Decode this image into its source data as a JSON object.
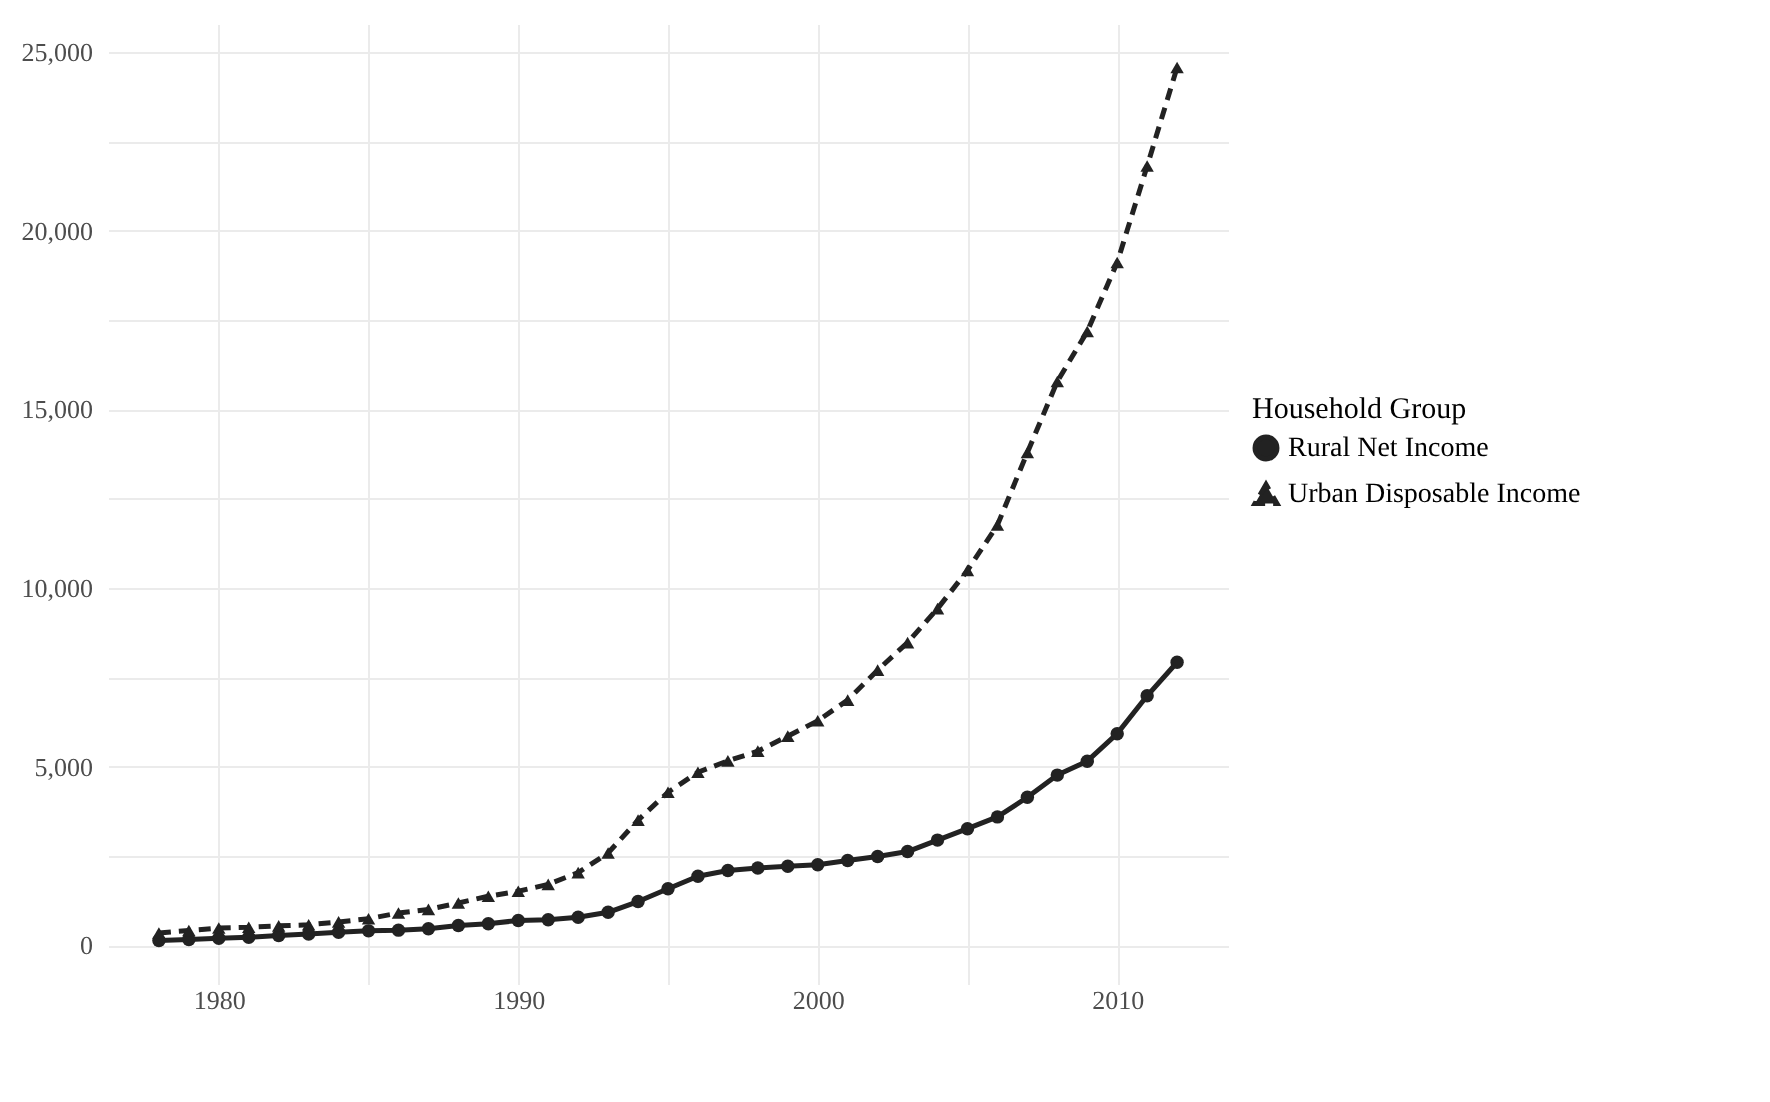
{
  "chart_data": {
    "type": "line",
    "legend_title": "Household Group",
    "x": [
      1978,
      1979,
      1980,
      1981,
      1982,
      1983,
      1984,
      1985,
      1986,
      1987,
      1988,
      1989,
      1990,
      1991,
      1992,
      1993,
      1994,
      1995,
      1996,
      1997,
      1998,
      1999,
      2000,
      2001,
      2002,
      2003,
      2004,
      2005,
      2006,
      2007,
      2008,
      2009,
      2010,
      2011,
      2012
    ],
    "series": [
      {
        "name": "Rural Net Income",
        "color": "#222222",
        "marker": "circle",
        "line_style": "solid",
        "values": [
          130,
          160,
          190,
          220,
          270,
          310,
          360,
          400,
          420,
          460,
          550,
          600,
          690,
          710,
          780,
          920,
          1220,
          1580,
          1930,
          2090,
          2160,
          2210,
          2250,
          2370,
          2480,
          2620,
          2940,
          3260,
          3590,
          4140,
          4760,
          5150,
          5920,
          6980,
          7920
        ]
      },
      {
        "name": "Urban Disposable Income",
        "color": "#222222",
        "marker": "triangle",
        "line_style": "dashed",
        "values": [
          340,
          410,
          480,
          500,
          540,
          570,
          650,
          740,
          900,
          1000,
          1180,
          1370,
          1510,
          1700,
          2030,
          2580,
          3500,
          4280,
          4840,
          5160,
          5430,
          5850,
          6280,
          6860,
          7700,
          8470,
          9420,
          10490,
          11760,
          13790,
          15780,
          17180,
          19110,
          21810,
          24570
        ]
      }
    ],
    "xlim": [
      1976.3,
      2013.7
    ],
    "xticks": [
      1980,
      {
        "value": 1985,
        "label": null
      },
      1990,
      {
        "value": 1995,
        "label": null
      },
      2000,
      {
        "value": 2005,
        "label": null
      },
      2010
    ],
    "ylim": [
      -1088,
      25787
    ],
    "yticks": [
      0,
      {
        "value": 2500,
        "label": null
      },
      {
        "value": 5000,
        "label": "5,000"
      },
      {
        "value": 7500,
        "label": null
      },
      {
        "value": 10000,
        "label": "10,000"
      },
      {
        "value": 12500,
        "label": null
      },
      {
        "value": 15000,
        "label": "15,000"
      },
      {
        "value": 17500,
        "label": null
      },
      {
        "value": 20000,
        "label": "20,000"
      },
      {
        "value": 22500,
        "label": null
      },
      {
        "value": 25000,
        "label": "25,000"
      }
    ],
    "grid": true,
    "legend": "right"
  }
}
